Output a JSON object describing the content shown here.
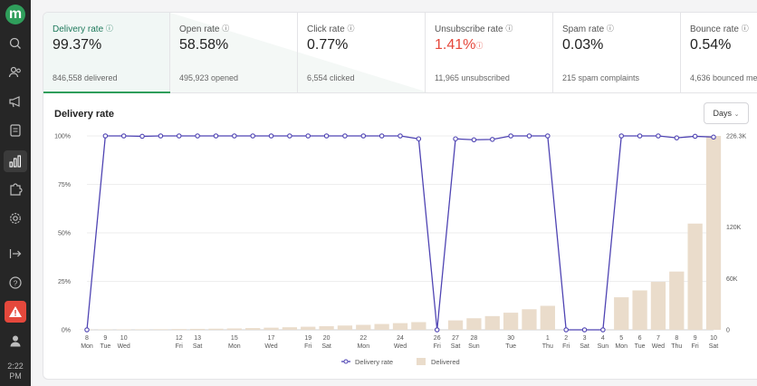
{
  "sidebar": {
    "logo_letter": "m",
    "icons": [
      "search-icon",
      "people-icon",
      "megaphone-icon",
      "forms-icon",
      "chart-icon",
      "puzzle-icon",
      "gear-icon",
      "exit-icon",
      "help-icon",
      "warning-icon",
      "user-icon"
    ],
    "time_line1": "2:22",
    "time_line2": "PM"
  },
  "metrics": [
    {
      "label": "Delivery rate",
      "value": "99.37%",
      "sub": "846,558 delivered"
    },
    {
      "label": "Open rate",
      "value": "58.58%",
      "sub": "495,923 opened"
    },
    {
      "label": "Click rate",
      "value": "0.77%",
      "sub": "6,554 clicked"
    },
    {
      "label": "Unsubscribe rate",
      "value": "1.41%",
      "sub": "11,965 unsubscribed"
    },
    {
      "label": "Spam rate",
      "value": "0.03%",
      "sub": "215 spam complaints"
    },
    {
      "label": "Bounce rate",
      "value": "0.54%",
      "sub": "4,636 bounced me"
    }
  ],
  "chart_title": "Delivery rate",
  "days_button": "Days",
  "colors": {
    "line": "#4f44b3",
    "bar": "#eadccb",
    "accent": "#2f9e5b",
    "alert": "#e5483c"
  },
  "chart_data": {
    "type": "bar+line",
    "categories": [
      [
        "8",
        "Mon"
      ],
      [
        "9",
        "Tue"
      ],
      [
        "10",
        "Wed"
      ],
      [
        "",
        ""
      ],
      [
        "",
        ""
      ],
      [
        "12",
        "Fri"
      ],
      [
        "13",
        "Sat"
      ],
      [
        "",
        ""
      ],
      [
        "15",
        "Mon"
      ],
      [
        "",
        ""
      ],
      [
        "17",
        "Wed"
      ],
      [
        "",
        ""
      ],
      [
        "19",
        "Fri"
      ],
      [
        "20",
        "Sat"
      ],
      [
        "",
        ""
      ],
      [
        "22",
        "Mon"
      ],
      [
        "",
        ""
      ],
      [
        "24",
        "Wed"
      ],
      [
        "",
        ""
      ],
      [
        "26",
        "Fri"
      ],
      [
        "27",
        "Sat"
      ],
      [
        "28",
        "Sun"
      ],
      [
        "",
        ""
      ],
      [
        "30",
        "Tue"
      ],
      [
        "",
        ""
      ],
      [
        "1",
        "Thu"
      ],
      [
        "2",
        "Fri"
      ],
      [
        "3",
        "Sat"
      ],
      [
        "4",
        "Sun"
      ],
      [
        "5",
        "Mon"
      ],
      [
        "6",
        "Tue"
      ],
      [
        "7",
        "Wed"
      ],
      [
        "8",
        "Thu"
      ],
      [
        "9",
        "Fri"
      ],
      [
        "10",
        "Sat"
      ]
    ],
    "series": [
      {
        "name": "Delivery rate",
        "type": "line",
        "axis": "left",
        "values": [
          0,
          100,
          100,
          99.8,
          100,
          100,
          100,
          100,
          100,
          100,
          100,
          100,
          100,
          100,
          100,
          100,
          100,
          100,
          98.5,
          0,
          98.5,
          98,
          98.2,
          100,
          100,
          100,
          0,
          0,
          0,
          100,
          100,
          100,
          99,
          99.8,
          99.4
        ]
      },
      {
        "name": "Delivered",
        "type": "bar",
        "axis": "right",
        "values": [
          300,
          400,
          500,
          600,
          700,
          900,
          1100,
          1300,
          1600,
          2000,
          2500,
          3000,
          3600,
          4200,
          5000,
          5800,
          6800,
          7800,
          9000,
          0,
          11000,
          13500,
          16000,
          20000,
          24000,
          28000,
          0,
          0,
          0,
          38000,
          46000,
          56000,
          68000,
          124000,
          226300
        ]
      }
    ],
    "y_left_ticks": [
      "0%",
      "25%",
      "50%",
      "75%",
      "100%"
    ],
    "y_right_ticks": [
      "0",
      "60K",
      "120K",
      "226.3K"
    ],
    "y_left_range": [
      0,
      100
    ],
    "y_right_range": [
      0,
      226300
    ],
    "legend": [
      "Delivery rate",
      "Delivered"
    ],
    "legend_position": "bottom"
  }
}
